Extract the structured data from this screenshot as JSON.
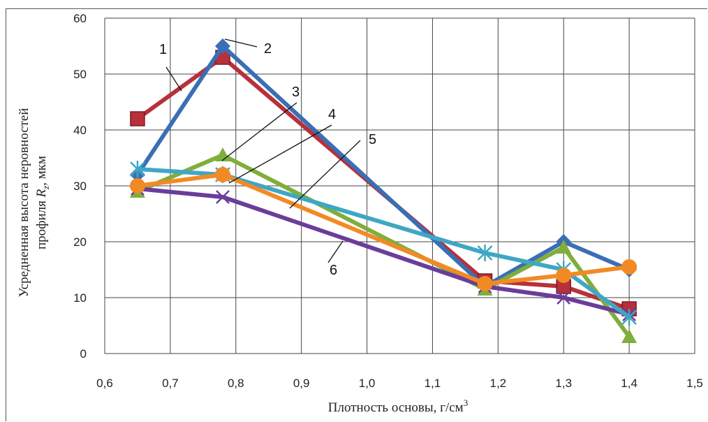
{
  "chart_data": {
    "type": "line",
    "xlabel": "Плотность основы, г/см",
    "xlabel_sup": "3",
    "ylabel_line1": "Усредненная высота неровностей",
    "ylabel_line2_pre": "профиля ",
    "ylabel_line2_var": "R",
    "ylabel_line2_sub": "z",
    "ylabel_line2_post": ", мкм",
    "xlim": [
      0.6,
      1.5
    ],
    "ylim": [
      0,
      60
    ],
    "x_ticks": [
      "0,6",
      "0,7",
      "0,8",
      "0,9",
      "1,0",
      "1,1",
      "1,2",
      "1,3",
      "1,4",
      "1,5"
    ],
    "y_ticks": [
      "0",
      "10",
      "20",
      "30",
      "40",
      "50",
      "60"
    ],
    "grid": true,
    "x": [
      0.65,
      0.78,
      1.18,
      1.3,
      1.4
    ],
    "series": [
      {
        "name": "1",
        "marker": "square",
        "color": "#b8303a",
        "values": [
          42,
          53,
          13,
          12,
          8
        ]
      },
      {
        "name": "2",
        "marker": "diamond",
        "color": "#3a6fb5",
        "values": [
          32,
          55,
          12,
          20,
          15
        ]
      },
      {
        "name": "3",
        "marker": "triangle",
        "color": "#7fae3c",
        "values": [
          29,
          35.5,
          11.5,
          19,
          3
        ]
      },
      {
        "name": "4",
        "marker": "x",
        "color": "#6a3d9a",
        "values": [
          29.5,
          28,
          12,
          10,
          7
        ]
      },
      {
        "name": "5",
        "marker": "star",
        "color": "#3fa7c4",
        "values": [
          33,
          32,
          18,
          15,
          6.5
        ]
      },
      {
        "name": "6",
        "marker": "circle",
        "color": "#f28a24",
        "values": [
          30,
          32,
          12.5,
          14,
          15.5
        ]
      }
    ],
    "callouts": [
      "1",
      "2",
      "3",
      "4",
      "5",
      "6"
    ]
  }
}
